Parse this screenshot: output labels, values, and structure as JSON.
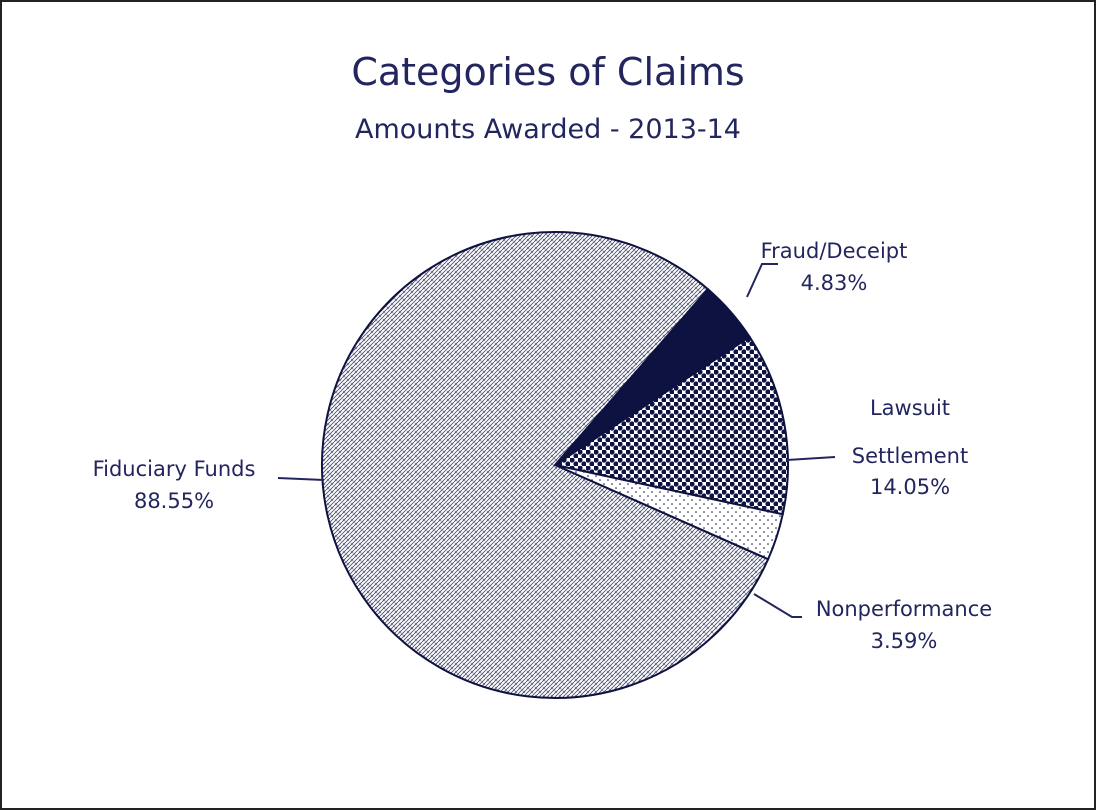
{
  "chart_data": {
    "type": "pie",
    "title": "Categories of Claims",
    "subtitle": "Amounts Awarded - 2013-14",
    "categories": [
      "Fraud/Deceipt",
      "Lawsuit Settlement",
      "Nonperformance",
      "Fiduciary Funds"
    ],
    "values": [
      4.83,
      14.05,
      3.59,
      88.55
    ],
    "value_labels": [
      "4.83%",
      "14.05%",
      "3.59%",
      "88.55%"
    ],
    "colors": [
      "#0d1240",
      "#0d1240",
      "#0d1240",
      "#0d1240"
    ]
  }
}
